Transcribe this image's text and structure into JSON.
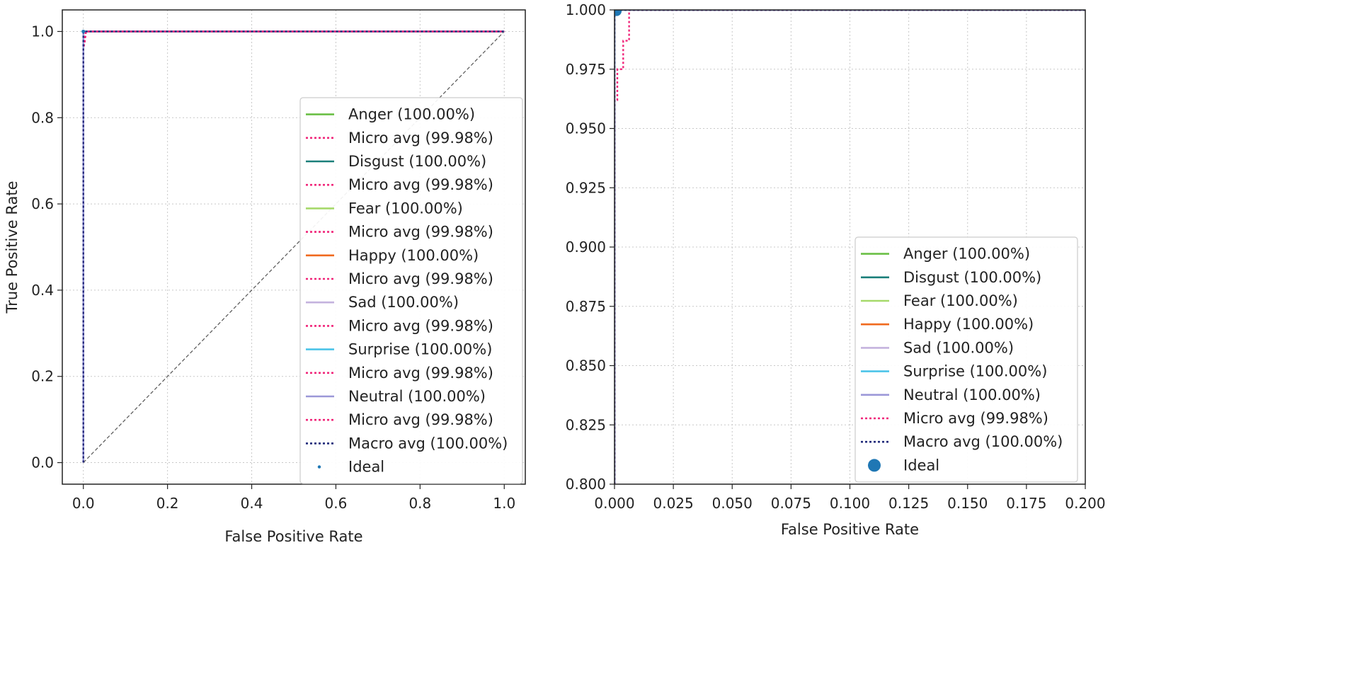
{
  "chart_data": [
    {
      "type": "line",
      "xlabel": "False Positive Rate",
      "ylabel": "True Positive Rate",
      "xlim": [
        -0.05,
        1.05
      ],
      "ylim": [
        -0.05,
        1.05
      ],
      "xticks": [
        "0.0",
        "0.2",
        "0.4",
        "0.6",
        "0.8",
        "1.0"
      ],
      "yticks": [
        "0.0",
        "0.2",
        "0.4",
        "0.6",
        "0.8",
        "1.0"
      ],
      "grid": true,
      "legend_position": "lower-right",
      "series": [
        {
          "name": "Anger (100.00%)",
          "color": "#6abf45",
          "style": "solid",
          "x": [
            0,
            0,
            1
          ],
          "y": [
            0,
            1,
            1
          ]
        },
        {
          "name": "Micro avg (99.98%)",
          "color": "#f0267a",
          "style": "dotted",
          "x": [
            0,
            0,
            0.003,
            0.006,
            1
          ],
          "y": [
            0,
            0.962,
            0.975,
            1,
            1
          ]
        },
        {
          "name": "Disgust (100.00%)",
          "color": "#1a7f7a",
          "style": "solid",
          "x": [
            0,
            0,
            1
          ],
          "y": [
            0,
            1,
            1
          ]
        },
        {
          "name": "Micro avg (99.98%)",
          "color": "#f0267a",
          "style": "dotted",
          "x": [
            0,
            0,
            0.003,
            0.006,
            1
          ],
          "y": [
            0,
            0.962,
            0.975,
            1,
            1
          ]
        },
        {
          "name": "Fear (100.00%)",
          "color": "#a6d96a",
          "style": "solid",
          "x": [
            0,
            0,
            1
          ],
          "y": [
            0,
            1,
            1
          ]
        },
        {
          "name": "Micro avg (99.98%)",
          "color": "#f0267a",
          "style": "dotted",
          "x": [
            0,
            0,
            0.003,
            0.006,
            1
          ],
          "y": [
            0,
            0.962,
            0.975,
            1,
            1
          ]
        },
        {
          "name": "Happy (100.00%)",
          "color": "#f06a1f",
          "style": "solid",
          "x": [
            0,
            0,
            1
          ],
          "y": [
            0,
            1,
            1
          ]
        },
        {
          "name": "Micro avg (99.98%)",
          "color": "#f0267a",
          "style": "dotted",
          "x": [
            0,
            0,
            0.003,
            0.006,
            1
          ],
          "y": [
            0,
            0.962,
            0.975,
            1,
            1
          ]
        },
        {
          "name": "Sad (100.00%)",
          "color": "#c4b3de",
          "style": "solid",
          "x": [
            0,
            0,
            1
          ],
          "y": [
            0,
            1,
            1
          ]
        },
        {
          "name": "Micro avg (99.98%)",
          "color": "#f0267a",
          "style": "dotted",
          "x": [
            0,
            0,
            0.003,
            0.006,
            1
          ],
          "y": [
            0,
            0.962,
            0.975,
            1,
            1
          ]
        },
        {
          "name": "Surprise (100.00%)",
          "color": "#4cc4e8",
          "style": "solid",
          "x": [
            0,
            0,
            1
          ],
          "y": [
            0,
            1,
            1
          ]
        },
        {
          "name": "Micro avg (99.98%)",
          "color": "#f0267a",
          "style": "dotted",
          "x": [
            0,
            0,
            0.003,
            0.006,
            1
          ],
          "y": [
            0,
            0.962,
            0.975,
            1,
            1
          ]
        },
        {
          "name": "Neutral (100.00%)",
          "color": "#9b97d8",
          "style": "solid",
          "x": [
            0,
            0,
            1
          ],
          "y": [
            0,
            1,
            1
          ]
        },
        {
          "name": "Micro avg (99.98%)",
          "color": "#f0267a",
          "style": "dotted",
          "x": [
            0,
            0,
            0.003,
            0.006,
            1
          ],
          "y": [
            0,
            0.962,
            0.975,
            1,
            1
          ]
        },
        {
          "name": "Macro avg (100.00%)",
          "color": "#1f2a7a",
          "style": "dotted",
          "x": [
            0,
            0,
            1
          ],
          "y": [
            0,
            1,
            1
          ]
        },
        {
          "name": "Ideal",
          "color": "#1f77b4",
          "style": "point",
          "marker_size": 2.5,
          "x": [
            0
          ],
          "y": [
            1
          ]
        }
      ],
      "reference_line": {
        "x": [
          0,
          1
        ],
        "y": [
          0,
          1
        ],
        "color": "#555555",
        "style": "dashed"
      }
    },
    {
      "type": "line",
      "xlabel": "False  Positive  Rate",
      "ylabel": "",
      "xlim": [
        0,
        0.2
      ],
      "ylim": [
        0.8,
        1.0
      ],
      "xticks": [
        "0.000",
        "0.025",
        "0.050",
        "0.075",
        "0.100",
        "0.125",
        "0.150",
        "0.175",
        "0.200"
      ],
      "yticks": [
        "0.800",
        "0.825",
        "0.850",
        "0.875",
        "0.900",
        "0.925",
        "0.950",
        "0.975",
        "1.000"
      ],
      "grid": true,
      "legend_position": "lower-right",
      "series": [
        {
          "name": "Anger (100.00%)",
          "color": "#6abf45",
          "style": "solid",
          "x": [
            0,
            0,
            0.2
          ],
          "y": [
            0.8,
            1,
            1
          ]
        },
        {
          "name": "Disgust (100.00%)",
          "color": "#1a7f7a",
          "style": "solid",
          "x": [
            0,
            0,
            0.2
          ],
          "y": [
            0.8,
            1,
            1
          ]
        },
        {
          "name": "Fear (100.00%)",
          "color": "#a6d96a",
          "style": "solid",
          "x": [
            0,
            0,
            0.2
          ],
          "y": [
            0.8,
            1,
            1
          ]
        },
        {
          "name": "Happy (100.00%)",
          "color": "#f06a1f",
          "style": "solid",
          "x": [
            0,
            0,
            0.2
          ],
          "y": [
            0.8,
            1,
            1
          ]
        },
        {
          "name": "Sad (100.00%)",
          "color": "#c4b3de",
          "style": "solid",
          "x": [
            0,
            0,
            0.2
          ],
          "y": [
            0.8,
            1,
            1
          ]
        },
        {
          "name": "Surprise (100.00%)",
          "color": "#4cc4e8",
          "style": "solid",
          "x": [
            0,
            0,
            0.2
          ],
          "y": [
            0.8,
            1,
            1
          ]
        },
        {
          "name": "Neutral (100.00%)",
          "color": "#9b97d8",
          "style": "solid",
          "x": [
            0,
            0,
            0.2
          ],
          "y": [
            0.8,
            1,
            1
          ]
        },
        {
          "name": "Micro avg (99.98%)",
          "color": "#f0267a",
          "style": "dotted",
          "x": [
            0,
            0,
            0.0012,
            0.0012,
            0.0025,
            0.0025,
            0.0037,
            0.0037,
            0.005,
            0.005,
            0.0062,
            0.0062,
            0.2
          ],
          "y": [
            0.8,
            0.962,
            0.962,
            0.975,
            0.975,
            0.975,
            0.975,
            0.987,
            0.987,
            0.987,
            0.987,
            1,
            1
          ]
        },
        {
          "name": "Macro avg (100.00%)",
          "color": "#1f2a7a",
          "style": "dotted",
          "x": [
            0,
            0,
            0.2
          ],
          "y": [
            0.8,
            1,
            1
          ]
        },
        {
          "name": "Ideal",
          "color": "#1f77b4",
          "style": "point",
          "marker_size": 7,
          "x": [
            0.0009
          ],
          "y": [
            0.9995
          ]
        }
      ]
    }
  ]
}
